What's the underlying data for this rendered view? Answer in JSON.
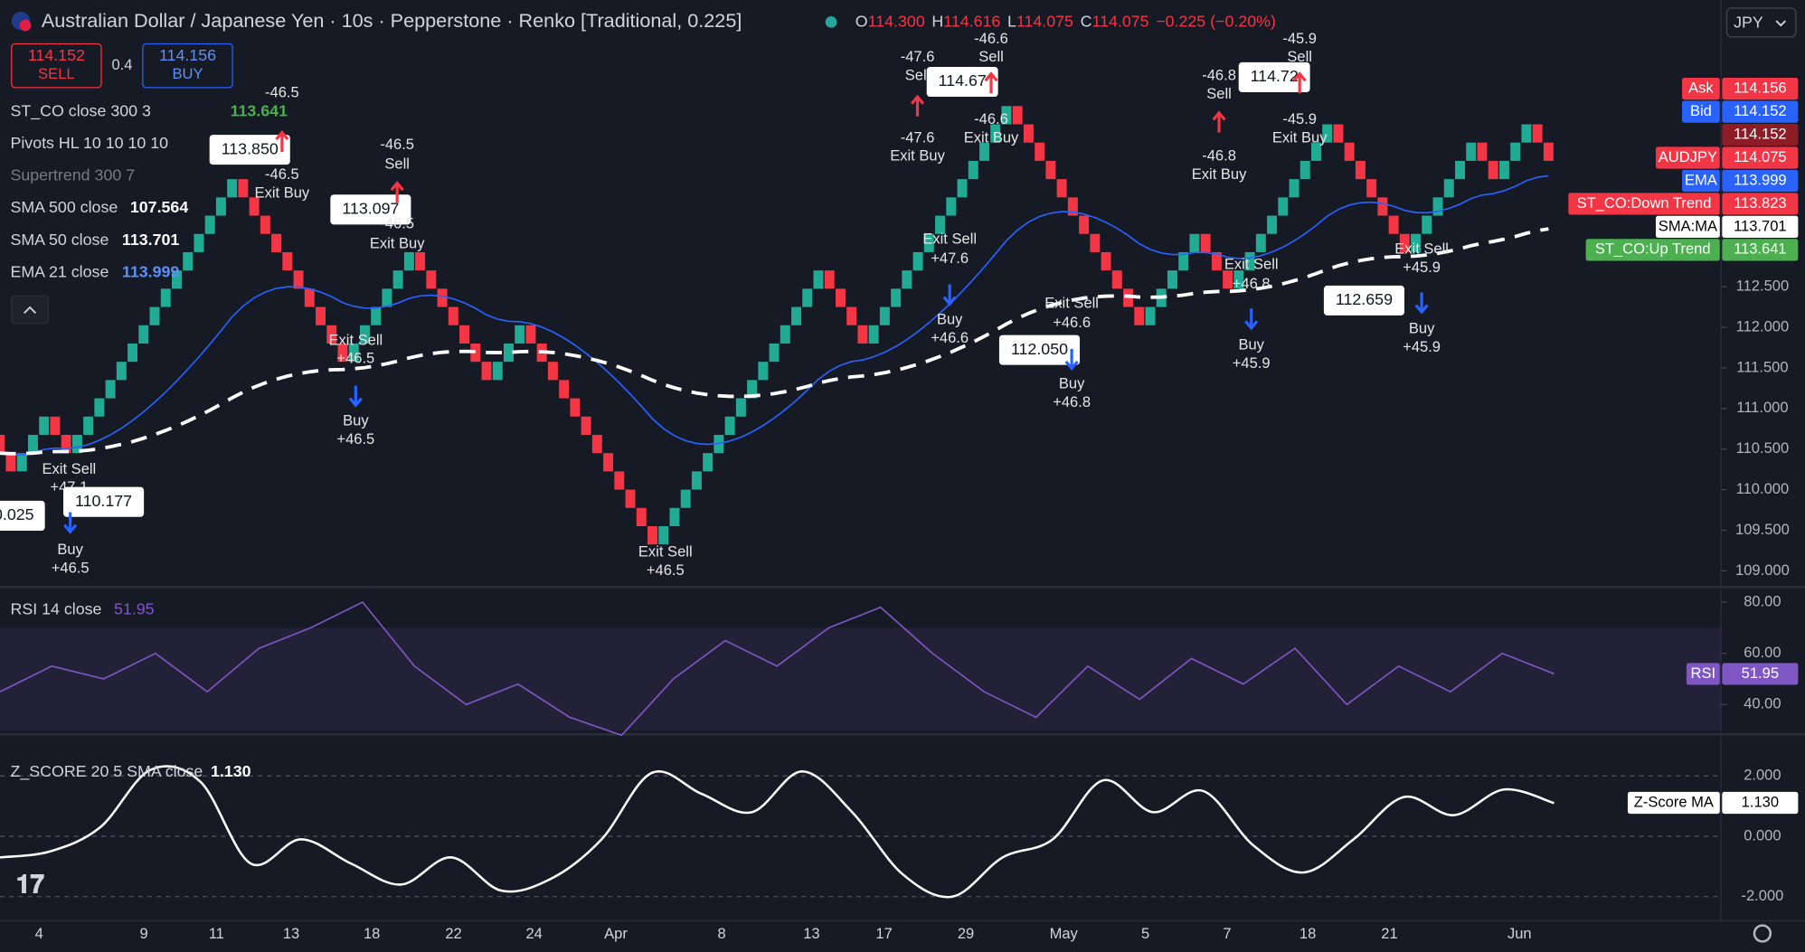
{
  "header": {
    "title": "Australian Dollar / Japanese Yen · 10s · Pepperstone · Renko [Traditional, 0.225]",
    "ohlc": [
      {
        "key": "O",
        "value": "114.300"
      },
      {
        "key": "H",
        "value": "114.616"
      },
      {
        "key": "L",
        "value": "114.075"
      },
      {
        "key": "C",
        "value": "114.075"
      }
    ],
    "change": "−0.225 (−0.20%)",
    "currency": "JPY"
  },
  "trade": {
    "sell_price": "114.152",
    "sell_label": "SELL",
    "spread": "0.4",
    "buy_price": "114.156",
    "buy_label": "BUY"
  },
  "legend": [
    {
      "name": "ST_CO close 300 3",
      "value": "113.641",
      "color": "#4caf50"
    },
    {
      "name": "Pivots HL 10 10 10 10"
    },
    {
      "name": "Supertrend 300 7",
      "color": "#787b86"
    },
    {
      "name": "SMA 500 close",
      "value": "107.564",
      "color": "#ffffff"
    },
    {
      "name": "SMA 50 close",
      "value": "113.701",
      "color": "#ffffff"
    },
    {
      "name": "EMA 21 close",
      "value": "113.999",
      "color": "#5b8ff9"
    }
  ],
  "price": {
    "ylim": [
      108.8,
      116.03
    ],
    "yticks": [
      {
        "value": 112.5,
        "label": "112.500"
      },
      {
        "value": 112.0,
        "label": "112.000"
      },
      {
        "value": 111.5,
        "label": "111.500"
      },
      {
        "value": 111.0,
        "label": "111.000"
      },
      {
        "value": 110.5,
        "label": "110.500"
      },
      {
        "value": 110.0,
        "label": "110.000"
      },
      {
        "value": 109.5,
        "label": "109.500"
      },
      {
        "value": 109.0,
        "label": "109.000"
      }
    ],
    "brick_size": 0.225,
    "up_color": "#22ab94",
    "down_color": "#f23645",
    "swings": [
      110.675,
      110.225,
      110.9,
      110.45,
      113.825,
      111.575,
      112.925,
      111.35,
      112.025,
      109.25,
      112.625,
      111.725,
      114.65,
      111.95,
      113.075,
      112.4,
      114.425,
      112.85,
      114.2,
      113.75,
      114.6,
      114.15
    ]
  },
  "right_labels": [
    {
      "name": "Ask",
      "value": "114.156",
      "color": "#f23645",
      "text_color": "#ffffff"
    },
    {
      "name": "Bid",
      "value": "114.152",
      "color": "#2962ff",
      "text_color": "#ffffff"
    },
    {
      "value": "114.152",
      "color": "#8e1c27",
      "text_color": "#ffffff"
    },
    {
      "name": "AUDJPY",
      "value": "114.075",
      "color": "#f23645",
      "text_color": "#ffffff"
    },
    {
      "name": "EMA",
      "value": "113.999",
      "color": "#2962ff",
      "text_color": "#ffffff"
    },
    {
      "name": "ST_CO:Down Trend",
      "value": "113.823",
      "color": "#f23645",
      "text_color": "#ffffff"
    },
    {
      "name": "SMA:MA",
      "value": "113.701",
      "color": "#ffffff",
      "text_color": "#000000"
    },
    {
      "name": "ST_CO:Up Trend",
      "value": "113.641",
      "color": "#4caf50",
      "text_color": "#ffffff"
    }
  ],
  "annotations": [
    "-46.5",
    "113.850",
    "-46.5",
    "Exit Buy",
    "-46.5",
    "Sell",
    "113.097",
    "-46.5",
    "Exit Buy",
    "Exit Sell",
    "+46.5",
    "Buy",
    "+46.5",
    "Exit Sell",
    "+47.1",
    "110.177",
    "0.025",
    "Buy",
    "+46.5",
    "Exit Sell",
    "+46.5",
    "-47.6",
    "Sell",
    "114.67",
    "-46.6",
    "Sell",
    "-46.6",
    "Exit Buy",
    "-47.6",
    "Exit Buy",
    "Exit Sell",
    "+47.6",
    "Buy",
    "+46.6",
    "Exit Sell",
    "+46.6",
    "112.050",
    "Buy",
    "+46.8",
    "-46.8",
    "Sell",
    "114.72",
    "-45.9",
    "Sell",
    "-45.9",
    "Exit Buy",
    "-46.8",
    "Exit Buy",
    "Exit Sell",
    "+46.8",
    "Buy",
    "+45.9",
    "112.659",
    "Exit Sell",
    "+45.9",
    "Buy",
    "+45.9"
  ],
  "rsi": {
    "title": "RSI 14 close",
    "value": "51.95",
    "label": "RSI",
    "color": "#7e57c2",
    "ylim": [
      28.8,
      85
    ],
    "yticks": [
      {
        "value": 80,
        "label": "80.00"
      },
      {
        "value": 60,
        "label": "60.00"
      },
      {
        "value": 40,
        "label": "40.00"
      }
    ],
    "band": [
      30,
      70
    ],
    "values": [
      45,
      55,
      50,
      60,
      45,
      62,
      70,
      80,
      55,
      40,
      48,
      35,
      28,
      50,
      65,
      55,
      70,
      78,
      60,
      45,
      35,
      55,
      42,
      58,
      48,
      62,
      40,
      55,
      45,
      60,
      52
    ]
  },
  "zscore": {
    "title": "Z_SCORE 20 5 SMA close",
    "value": "1.130",
    "label": "Z-Score MA",
    "ylim": [
      -2.8,
      3.3
    ],
    "yticks": [
      {
        "value": 2,
        "label": "2.000"
      },
      {
        "value": 0,
        "label": "0.000"
      },
      {
        "value": -2,
        "label": "-2.000"
      }
    ],
    "values": [
      -0.7,
      -0.5,
      0.3,
      2.2,
      1.8,
      -0.9,
      -0.1,
      -0.9,
      -1.6,
      -0.7,
      -1.8,
      -1.4,
      -0.1,
      2.1,
      1.4,
      0.8,
      2.15,
      0.8,
      -1.25,
      -2.0,
      -0.7,
      -0.1,
      1.85,
      0.8,
      1.5,
      -0.3,
      -1.2,
      -0.1,
      1.3,
      0.7,
      1.55,
      1.1
    ]
  },
  "x_labels": [
    "4",
    "9",
    "11",
    "13",
    "18",
    "22",
    "24",
    "Apr",
    "8",
    "13",
    "17",
    "29",
    "May",
    "5",
    "7",
    "18",
    "21",
    "Jun"
  ]
}
